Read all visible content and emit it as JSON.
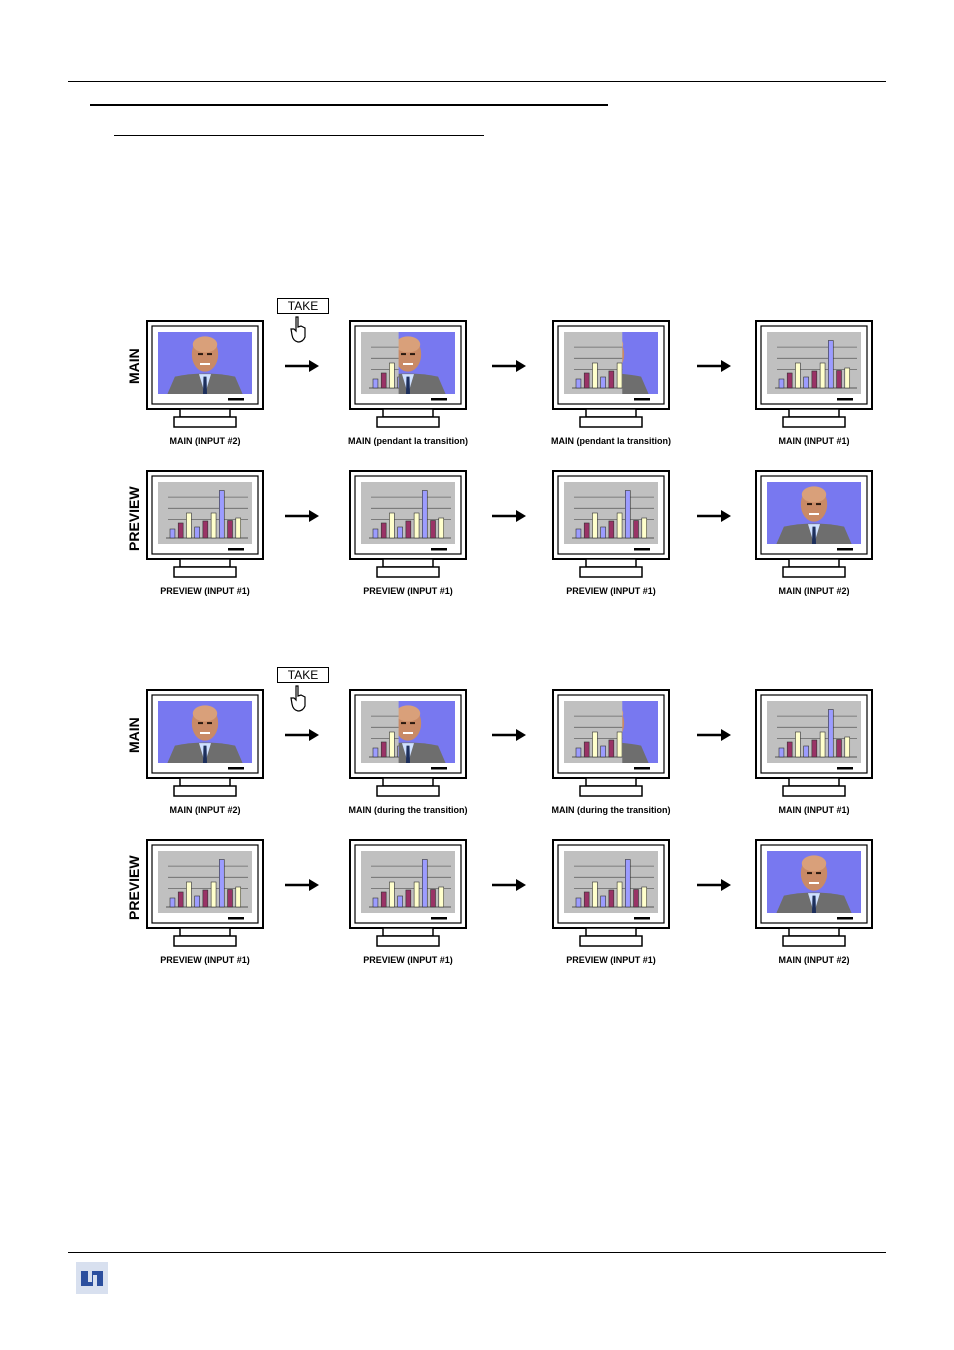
{
  "take_label": "TAKE",
  "row_labels": {
    "main": "MAIN",
    "preview": "PREVIEW"
  },
  "diagram_fr": {
    "main": [
      "MAIN (INPUT #2)",
      "MAIN (pendant la transition)",
      "MAIN (pendant la transition)",
      "MAIN (INPUT #1)"
    ],
    "preview": [
      "PREVIEW (INPUT #1)",
      "PREVIEW (INPUT #1)",
      "PREVIEW (INPUT #1)",
      "MAIN (INPUT #2)"
    ]
  },
  "diagram_en": {
    "main": [
      "MAIN (INPUT #2)",
      "MAIN (during the transition)",
      "MAIN (during the transition)",
      "MAIN (INPUT #1)"
    ],
    "preview": [
      "PREVIEW (INPUT #1)",
      "PREVIEW (INPUT #1)",
      "PREVIEW (INPUT #1)",
      "MAIN (INPUT #2)"
    ]
  },
  "colors": {
    "screen_blue": "#7878f0",
    "chart_gray": "#c0c0c0",
    "bar_purple": "#9c9cff",
    "bar_maroon": "#993366",
    "bar_cream": "#ffffcc"
  }
}
